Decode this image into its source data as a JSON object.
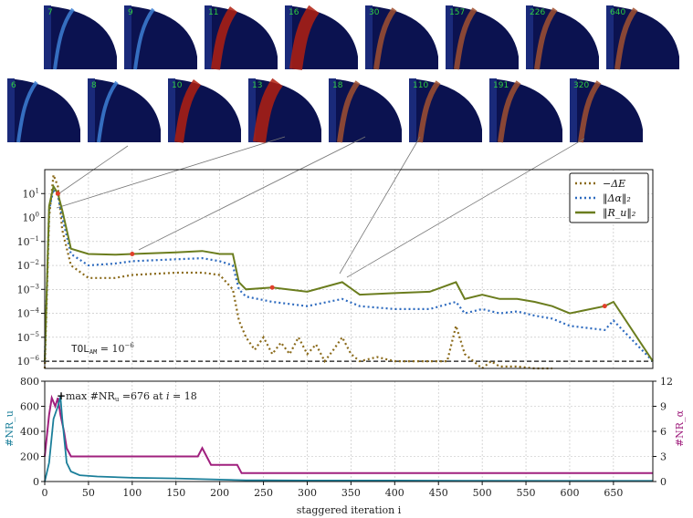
{
  "thumbnails": {
    "top_row": [
      "7",
      "9",
      "11",
      "16",
      "30",
      "157",
      "226",
      "640"
    ],
    "bottom_row": [
      "6",
      "8",
      "10",
      "13",
      "18",
      "110",
      "191",
      "320"
    ]
  },
  "colors": {
    "energy": "#8a6a1a",
    "alpha": "#2e6bbf",
    "residual": "#6b7d1e",
    "nr_u": "#1b7f9a",
    "nr_alpha": "#a0207e",
    "tol": "#111111",
    "marker": "#e0402a"
  },
  "chart_data": [
    {
      "type": "line",
      "scale": "log",
      "xlim": [
        0,
        695
      ],
      "ylim": [
        5e-07,
        100.0
      ],
      "yticks": [
        "10^{-6}",
        "10^{-5}",
        "10^{-4}",
        "10^{-3}",
        "10^{-2}",
        "10^{-1}",
        "10^{0}",
        "10^{1}"
      ],
      "grid": true,
      "legend": "top-right",
      "series": [
        {
          "name": "−ΔE",
          "style": "dotted",
          "x": [
            0,
            5,
            10,
            15,
            20,
            30,
            50,
            80,
            100,
            150,
            180,
            200,
            215,
            222,
            230,
            240,
            250,
            260,
            270,
            280,
            290,
            300,
            310,
            320,
            330,
            340,
            350,
            360,
            380,
            400,
            420,
            440,
            460,
            470,
            475,
            480,
            490,
            500,
            510,
            520,
            540,
            560,
            580
          ],
          "y": [
            5e-07,
            1,
            60,
            20,
            0.3,
            0.01,
            0.003,
            0.003,
            0.004,
            0.005,
            0.005,
            0.004,
            0.001,
            5e-05,
            1e-05,
            3e-06,
            1e-05,
            2e-06,
            6e-06,
            2e-06,
            1e-05,
            2e-06,
            5e-06,
            1e-06,
            3e-06,
            1e-05,
            2e-06,
            1e-06,
            1.5e-06,
            1e-06,
            1e-06,
            1e-06,
            1e-06,
            3e-05,
            8e-06,
            2e-06,
            1e-06,
            5e-07,
            1e-06,
            6e-07,
            6e-07,
            5e-07,
            5e-07
          ]
        },
        {
          "name": "‖Δα‖₂",
          "style": "dotted",
          "x": [
            0,
            5,
            10,
            15,
            20,
            30,
            50,
            80,
            100,
            150,
            180,
            200,
            215,
            222,
            230,
            260,
            300,
            340,
            360,
            400,
            440,
            470,
            480,
            500,
            520,
            540,
            560,
            580,
            600,
            640,
            650,
            695
          ],
          "y": [
            1e-06,
            2,
            15,
            8,
            1,
            0.03,
            0.01,
            0.012,
            0.015,
            0.018,
            0.02,
            0.015,
            0.01,
            0.001,
            0.0005,
            0.0003,
            0.0002,
            0.0004,
            0.0002,
            0.00015,
            0.00015,
            0.0003,
            0.0001,
            0.00015,
            0.0001,
            0.00012,
            8e-05,
            6e-05,
            3e-05,
            2e-05,
            5e-05,
            1e-06
          ]
        },
        {
          "name": "‖R_u‖₂",
          "style": "solid",
          "x": [
            0,
            5,
            10,
            15,
            20,
            30,
            50,
            80,
            100,
            150,
            180,
            200,
            215,
            222,
            230,
            260,
            300,
            340,
            360,
            400,
            440,
            470,
            480,
            500,
            520,
            540,
            560,
            580,
            600,
            640,
            650,
            695
          ],
          "y": [
            1e-06,
            3,
            20,
            10,
            2,
            0.05,
            0.03,
            0.028,
            0.03,
            0.035,
            0.04,
            0.03,
            0.03,
            0.002,
            0.001,
            0.0012,
            0.0008,
            0.002,
            0.0006,
            0.0007,
            0.0008,
            0.002,
            0.0004,
            0.0006,
            0.0004,
            0.0004,
            0.0003,
            0.0002,
            0.0001,
            0.0002,
            0.0003,
            1e-06
          ]
        }
      ],
      "annotations": [
        {
          "text": "TOL",
          "subscript": "AM",
          "suffix": " = 10",
          "exponent": "−6",
          "value": 1e-06
        }
      ]
    },
    {
      "type": "line",
      "xlim": [
        0,
        695
      ],
      "xticks": [
        0,
        50,
        100,
        150,
        200,
        250,
        300,
        350,
        400,
        450,
        500,
        550,
        600,
        650
      ],
      "xlabel": "staggered iteration i",
      "left_ylim": [
        0,
        800
      ],
      "left_yticks": [
        0,
        200,
        400,
        600,
        800
      ],
      "left_ylabel": "#NR_u",
      "right_ylim": [
        0,
        12
      ],
      "right_yticks": [
        0,
        3,
        6,
        9,
        12
      ],
      "right_ylabel": "#NR_α",
      "series": [
        {
          "name": "#NR_u",
          "axis": "left",
          "x": [
            0,
            5,
            10,
            15,
            18,
            20,
            25,
            30,
            40,
            60,
            100,
            150,
            200,
            230,
            250,
            300,
            400,
            500,
            600,
            695
          ],
          "y": [
            0,
            150,
            500,
            600,
            676,
            500,
            150,
            80,
            50,
            40,
            30,
            25,
            15,
            10,
            10,
            8,
            8,
            6,
            5,
            5
          ]
        },
        {
          "name": "#NR_α",
          "axis": "right",
          "x": [
            0,
            5,
            8,
            12,
            15,
            18,
            22,
            25,
            30,
            40,
            60,
            100,
            130,
            150,
            175,
            180,
            185,
            190,
            195,
            220,
            225,
            230,
            300,
            400,
            500,
            600,
            695
          ],
          "y": [
            3,
            8,
            10,
            9,
            10,
            8,
            6,
            4,
            3,
            3,
            3,
            3,
            3,
            3,
            3,
            4,
            3,
            2,
            2,
            2,
            1,
            1,
            1,
            1,
            1,
            1,
            1
          ]
        }
      ],
      "annotation": {
        "text": "max #NR",
        "sub": "u",
        "suffix": " =676 at ",
        "var": "i",
        "eq": " = 18",
        "x": 18,
        "y": 676
      }
    }
  ]
}
